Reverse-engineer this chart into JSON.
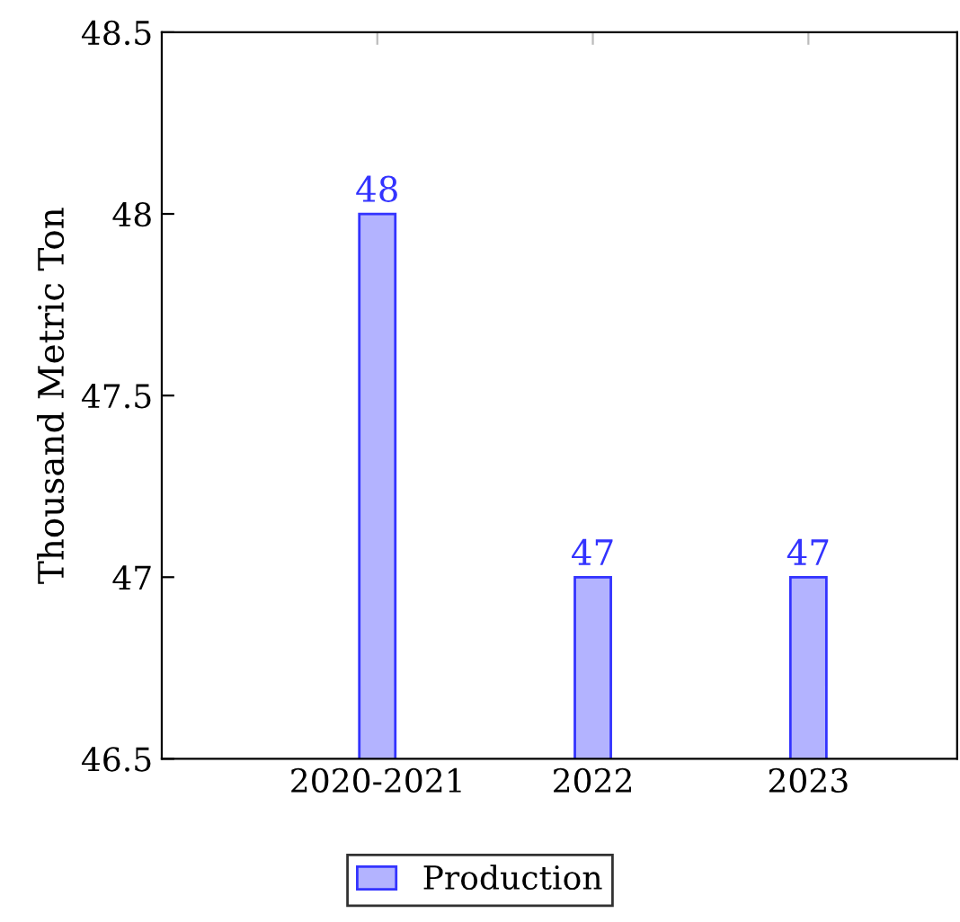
{
  "chart_data": {
    "type": "bar",
    "ylabel": "Thousand Metric Ton",
    "categories": [
      "2020-2021",
      "2022",
      "2023"
    ],
    "series": [
      {
        "name": "Production",
        "color": "#b3b3ff",
        "values": [
          48,
          47,
          47
        ]
      }
    ],
    "ylim": [
      46.5,
      48.5
    ],
    "yticks": [
      46.5,
      47,
      47.5,
      48,
      48.5
    ],
    "data_labels": true,
    "legend": "bottom",
    "grid": false
  }
}
